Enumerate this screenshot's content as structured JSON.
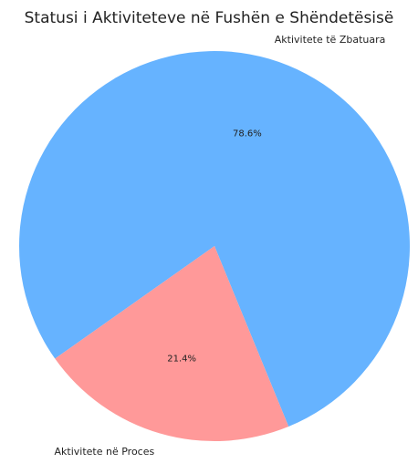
{
  "chart_data": {
    "type": "pie",
    "title": "Statusi i Aktiviteteve në Fushën e Shëndetësisë",
    "slices": [
      {
        "label": "Aktivitete të Zbatuara",
        "value": 78.6,
        "pct_label": "78.6%",
        "color": "#66b3ff"
      },
      {
        "label": "Aktivitete në Proces",
        "value": 21.4,
        "pct_label": "21.4%",
        "color": "#ff9999"
      }
    ]
  }
}
